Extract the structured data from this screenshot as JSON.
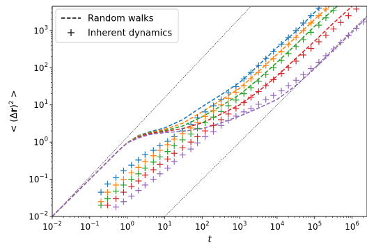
{
  "chart_data": {
    "type": "line",
    "xlabel": "t",
    "ylabel_parts": {
      "prefix": "< (",
      "delta": "Δ",
      "r": "r",
      "close": ")",
      "sup": "2",
      "suffix": " >"
    },
    "xscale": "log",
    "yscale": "log",
    "xlim": [
      0.01,
      2500000
    ],
    "ylim": [
      0.01,
      4500
    ],
    "x_ticks": [
      {
        "value": 0.01,
        "base": "10",
        "exp": "−2"
      },
      {
        "value": 0.1,
        "base": "10",
        "exp": "−1"
      },
      {
        "value": 1,
        "base": "10",
        "exp": "0"
      },
      {
        "value": 10,
        "base": "10",
        "exp": "1"
      },
      {
        "value": 100,
        "base": "10",
        "exp": "2"
      },
      {
        "value": 1000,
        "base": "10",
        "exp": "3"
      },
      {
        "value": 10000,
        "base": "10",
        "exp": "4"
      },
      {
        "value": 100000,
        "base": "10",
        "exp": "5"
      },
      {
        "value": 1000000,
        "base": "10",
        "exp": "6"
      }
    ],
    "y_ticks": [
      {
        "value": 0.01,
        "base": "10",
        "exp": "−2"
      },
      {
        "value": 0.1,
        "base": "10",
        "exp": "−1"
      },
      {
        "value": 1,
        "base": "10",
        "exp": "0"
      },
      {
        "value": 10,
        "base": "10",
        "exp": "1"
      },
      {
        "value": 100,
        "base": "10",
        "exp": "2"
      },
      {
        "value": 1000,
        "base": "10",
        "exp": "3"
      }
    ],
    "legend": {
      "placement": "top-left",
      "entries": [
        {
          "label": "Random walks",
          "marker": "dashed-line"
        },
        {
          "label": "Inherent dynamics",
          "marker": "plus"
        }
      ]
    },
    "reference_lines": [
      {
        "style": "thin-dotted",
        "points": [
          [
            0.01,
            0.01
          ],
          [
            2000,
            4500
          ]
        ]
      },
      {
        "style": "thin-dotted",
        "points": [
          [
            10,
            0.01
          ],
          [
            2500000,
            2500
          ]
        ]
      }
    ],
    "series": [
      {
        "color": "#1f77b4",
        "random_walk": [
          [
            0.01,
            0.01
          ],
          [
            0.1,
            0.1
          ],
          [
            0.3,
            0.3
          ],
          [
            0.6,
            0.6
          ],
          [
            1,
            0.95
          ],
          [
            2,
            1.5
          ],
          [
            4,
            1.9
          ],
          [
            10,
            2.4
          ],
          [
            30,
            4
          ],
          [
            100,
            9
          ],
          [
            300,
            18
          ],
          [
            1000,
            40
          ],
          [
            3000,
            110
          ],
          [
            10000,
            350
          ],
          [
            30000,
            900
          ],
          [
            100000,
            3100
          ],
          [
            150000,
            4500
          ]
        ],
        "inherent": [
          [
            0.2,
            0.045
          ],
          [
            0.3,
            0.075
          ],
          [
            0.5,
            0.11
          ],
          [
            0.8,
            0.17
          ],
          [
            1.3,
            0.24
          ],
          [
            2,
            0.33
          ],
          [
            3,
            0.46
          ],
          [
            5,
            0.6
          ],
          [
            7.5,
            0.8
          ],
          [
            12,
            1.05
          ],
          [
            18,
            1.4
          ],
          [
            30,
            2
          ],
          [
            50,
            3
          ],
          [
            75,
            4.5
          ],
          [
            120,
            6.5
          ],
          [
            200,
            9.5
          ],
          [
            320,
            14
          ],
          [
            500,
            21
          ],
          [
            800,
            31
          ],
          [
            1300,
            50
          ],
          [
            2000,
            75
          ],
          [
            3200,
            115
          ],
          [
            5000,
            175
          ],
          [
            8000,
            275
          ],
          [
            13000,
            430
          ],
          [
            20000,
            650
          ],
          [
            32000,
            1000
          ],
          [
            50000,
            1600
          ],
          [
            80000,
            2500
          ],
          [
            130000,
            4000
          ]
        ]
      },
      {
        "color": "#ff7f0e",
        "random_walk": [
          [
            0.01,
            0.01
          ],
          [
            0.1,
            0.1
          ],
          [
            0.3,
            0.3
          ],
          [
            0.6,
            0.6
          ],
          [
            1,
            0.95
          ],
          [
            2,
            1.45
          ],
          [
            4,
            1.8
          ],
          [
            10,
            2.2
          ],
          [
            30,
            3.2
          ],
          [
            100,
            6.5
          ],
          [
            300,
            13
          ],
          [
            1000,
            28
          ],
          [
            3000,
            75
          ],
          [
            10000,
            230
          ],
          [
            30000,
            630
          ],
          [
            100000,
            2000
          ],
          [
            250000,
            4500
          ]
        ],
        "inherent": [
          [
            0.2,
            0.025
          ],
          [
            0.3,
            0.045
          ],
          [
            0.5,
            0.07
          ],
          [
            0.8,
            0.1
          ],
          [
            1.3,
            0.15
          ],
          [
            2,
            0.21
          ],
          [
            3,
            0.3
          ],
          [
            5,
            0.43
          ],
          [
            7.5,
            0.6
          ],
          [
            12,
            0.85
          ],
          [
            18,
            1.2
          ],
          [
            30,
            1.7
          ],
          [
            50,
            2.4
          ],
          [
            75,
            3.4
          ],
          [
            120,
            4.9
          ],
          [
            200,
            7
          ],
          [
            320,
            10
          ],
          [
            500,
            15
          ],
          [
            800,
            22
          ],
          [
            1300,
            33
          ],
          [
            2000,
            50
          ],
          [
            3200,
            75
          ],
          [
            5000,
            115
          ],
          [
            8000,
            175
          ],
          [
            13000,
            270
          ],
          [
            20000,
            420
          ],
          [
            32000,
            650
          ],
          [
            50000,
            1000
          ],
          [
            80000,
            1600
          ],
          [
            130000,
            2500
          ],
          [
            200000,
            3800
          ]
        ]
      },
      {
        "color": "#2ca02c",
        "random_walk": [
          [
            0.01,
            0.01
          ],
          [
            0.1,
            0.1
          ],
          [
            0.3,
            0.3
          ],
          [
            0.6,
            0.6
          ],
          [
            1,
            0.95
          ],
          [
            2,
            1.4
          ],
          [
            4,
            1.75
          ],
          [
            10,
            2.05
          ],
          [
            30,
            2.7
          ],
          [
            100,
            4.8
          ],
          [
            300,
            9
          ],
          [
            1000,
            19
          ],
          [
            3000,
            47
          ],
          [
            10000,
            140
          ],
          [
            30000,
            400
          ],
          [
            100000,
            1300
          ],
          [
            400000,
            4500
          ]
        ],
        "inherent": [
          [
            0.2,
            0.02
          ],
          [
            0.3,
            0.03
          ],
          [
            0.5,
            0.048
          ],
          [
            0.8,
            0.07
          ],
          [
            1.3,
            0.1
          ],
          [
            2,
            0.14
          ],
          [
            3,
            0.2
          ],
          [
            5,
            0.29
          ],
          [
            7.5,
            0.4
          ],
          [
            12,
            0.56
          ],
          [
            18,
            0.8
          ],
          [
            30,
            1.15
          ],
          [
            50,
            1.65
          ],
          [
            75,
            2.35
          ],
          [
            120,
            3.3
          ],
          [
            200,
            4.7
          ],
          [
            320,
            6.6
          ],
          [
            500,
            9.5
          ],
          [
            800,
            13.5
          ],
          [
            1300,
            20
          ],
          [
            2000,
            29
          ],
          [
            3200,
            43
          ],
          [
            5000,
            65
          ],
          [
            8000,
            100
          ],
          [
            13000,
            155
          ],
          [
            20000,
            240
          ],
          [
            32000,
            370
          ],
          [
            50000,
            570
          ],
          [
            80000,
            900
          ],
          [
            130000,
            1400
          ],
          [
            200000,
            2200
          ],
          [
            320000,
            3500
          ]
        ]
      },
      {
        "color": "#d62728",
        "random_walk": [
          [
            0.01,
            0.01
          ],
          [
            0.1,
            0.1
          ],
          [
            0.3,
            0.3
          ],
          [
            0.6,
            0.6
          ],
          [
            1,
            0.95
          ],
          [
            2,
            1.35
          ],
          [
            4,
            1.7
          ],
          [
            10,
            1.95
          ],
          [
            30,
            2.3
          ],
          [
            100,
            3.3
          ],
          [
            300,
            5.5
          ],
          [
            1000,
            10
          ],
          [
            3000,
            22
          ],
          [
            10000,
            60
          ],
          [
            30000,
            170
          ],
          [
            100000,
            520
          ],
          [
            300000,
            1500
          ],
          [
            1000000,
            4500
          ]
        ],
        "inherent": [
          [
            0.3,
            0.02
          ],
          [
            0.5,
            0.03
          ],
          [
            0.8,
            0.045
          ],
          [
            1.3,
            0.065
          ],
          [
            2,
            0.09
          ],
          [
            3,
            0.13
          ],
          [
            5,
            0.18
          ],
          [
            7.5,
            0.25
          ],
          [
            12,
            0.35
          ],
          [
            18,
            0.5
          ],
          [
            30,
            0.7
          ],
          [
            50,
            1
          ],
          [
            75,
            1.4
          ],
          [
            120,
            2
          ],
          [
            200,
            2.8
          ],
          [
            320,
            4
          ],
          [
            500,
            5.7
          ],
          [
            800,
            8
          ],
          [
            1300,
            11.5
          ],
          [
            2000,
            16
          ],
          [
            3200,
            23
          ],
          [
            5000,
            33
          ],
          [
            8000,
            48
          ],
          [
            13000,
            70
          ],
          [
            20000,
            100
          ],
          [
            32000,
            150
          ],
          [
            50000,
            220
          ],
          [
            80000,
            330
          ],
          [
            130000,
            500
          ],
          [
            200000,
            750
          ],
          [
            320000,
            1100
          ],
          [
            500000,
            1650
          ],
          [
            800000,
            2500
          ],
          [
            1300000,
            3800
          ]
        ]
      },
      {
        "color": "#9467bd",
        "random_walk": [
          [
            0.01,
            0.01
          ],
          [
            0.1,
            0.1
          ],
          [
            0.3,
            0.3
          ],
          [
            0.6,
            0.6
          ],
          [
            1,
            0.95
          ],
          [
            2,
            1.3
          ],
          [
            4,
            1.6
          ],
          [
            10,
            1.8
          ],
          [
            30,
            1.95
          ],
          [
            100,
            2.3
          ],
          [
            300,
            3.2
          ],
          [
            1000,
            5
          ],
          [
            3000,
            8
          ],
          [
            10000,
            14
          ],
          [
            30000,
            32
          ],
          [
            100000,
            95
          ],
          [
            300000,
            280
          ],
          [
            1000000,
            900
          ],
          [
            2500000,
            2300
          ]
        ],
        "inherent": [
          [
            0.5,
            0.018
          ],
          [
            0.8,
            0.025
          ],
          [
            1.3,
            0.035
          ],
          [
            2,
            0.05
          ],
          [
            3,
            0.07
          ],
          [
            5,
            0.1
          ],
          [
            7.5,
            0.14
          ],
          [
            12,
            0.2
          ],
          [
            18,
            0.3
          ],
          [
            30,
            0.45
          ],
          [
            50,
            0.65
          ],
          [
            75,
            0.95
          ],
          [
            120,
            1.4
          ],
          [
            200,
            1.9
          ],
          [
            320,
            2.8
          ],
          [
            500,
            3.8
          ],
          [
            800,
            5
          ],
          [
            1300,
            6.5
          ],
          [
            2000,
            8
          ],
          [
            3200,
            10.5
          ],
          [
            5000,
            14
          ],
          [
            8000,
            18
          ],
          [
            13000,
            24
          ],
          [
            20000,
            33
          ],
          [
            32000,
            46
          ],
          [
            50000,
            65
          ],
          [
            80000,
            95
          ],
          [
            130000,
            140
          ],
          [
            200000,
            210
          ],
          [
            320000,
            320
          ],
          [
            500000,
            480
          ],
          [
            800000,
            740
          ],
          [
            1300000,
            1150
          ],
          [
            2000000,
            1700
          ]
        ]
      }
    ]
  }
}
